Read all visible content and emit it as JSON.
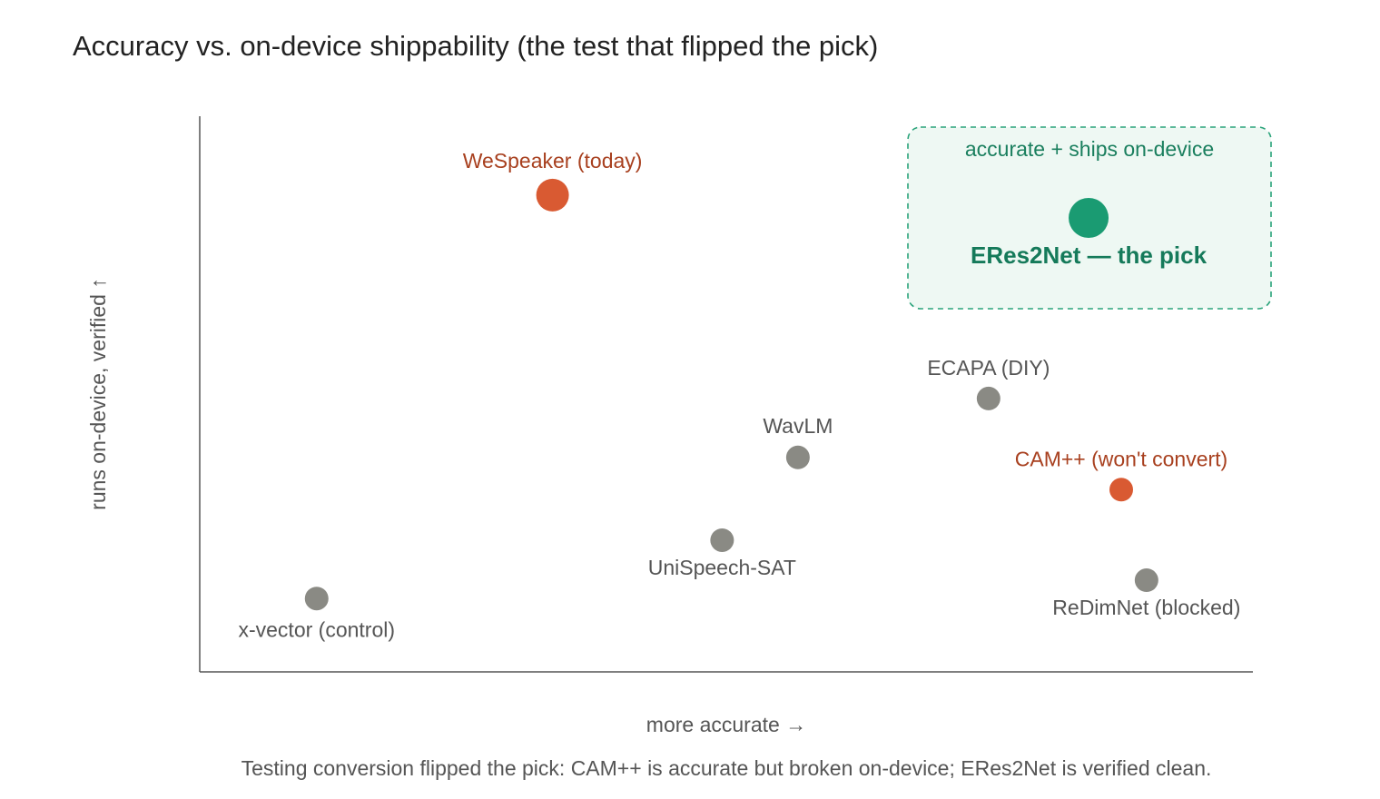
{
  "chart_data": {
    "type": "scatter",
    "title": "Accuracy vs. on-device shippability (the test that flipped the pick)",
    "x_label": "more accurate →",
    "y_label": "runs on-device, verified ↑",
    "caption": "Testing conversion flipped the pick: CAM++ is accurate but broken on-device; ERes2Net is verified clean.",
    "annotation": "accurate + ships on-device",
    "xlim": [
      0,
      100
    ],
    "ylim": [
      0,
      100
    ],
    "points": [
      {
        "label": "x-vector (control)",
        "x": 11.1,
        "y": 13.2,
        "color": "#8a8a84"
      },
      {
        "label": "WeSpeaker (today)",
        "x": 33.5,
        "y": 85.8,
        "color": "#d95a32"
      },
      {
        "label": "ERes2Net — the pick",
        "x": 84.4,
        "y": 81.7,
        "color": "#1a9b72"
      },
      {
        "label": "ECAPA (DIY)",
        "x": 74.9,
        "y": 49.2,
        "color": "#8a8a84"
      },
      {
        "label": "WavLM",
        "x": 56.8,
        "y": 38.6,
        "color": "#8a8a84"
      },
      {
        "label": "CAM++ (won't convert)",
        "x": 87.5,
        "y": 32.8,
        "color": "#d95a32"
      },
      {
        "label": "UniSpeech-SAT",
        "x": 49.6,
        "y": 23.7,
        "color": "#8a8a84"
      },
      {
        "label": "ReDimNet (blocked)",
        "x": 89.9,
        "y": 16.5,
        "color": "#8a8a84"
      }
    ]
  }
}
